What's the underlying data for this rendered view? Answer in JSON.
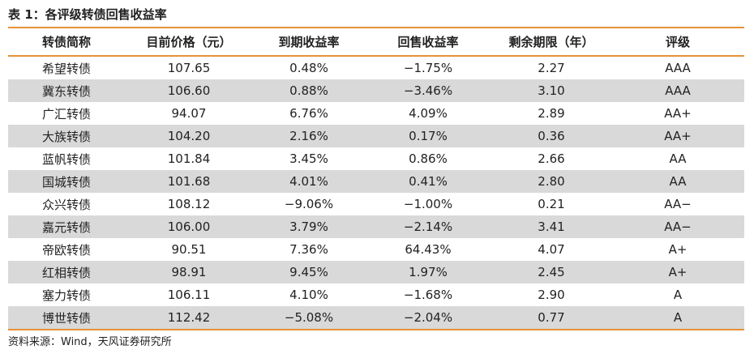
{
  "caption": "表 1：各评级转债回售收益率",
  "headers": [
    "转债简称",
    "目前价格（元）",
    "到期收益率",
    "回售收益率",
    "剩余期限（年）",
    "评级"
  ],
  "rows": [
    [
      "希望转债",
      "107.65",
      "0.48%",
      "−1.75%",
      "2.27",
      "AAA"
    ],
    [
      "冀东转债",
      "106.60",
      "0.88%",
      "−3.46%",
      "3.10",
      "AAA"
    ],
    [
      "广汇转债",
      "94.07",
      "6.76%",
      "4.09%",
      "2.89",
      "AA+"
    ],
    [
      "大族转债",
      "104.20",
      "2.16%",
      "0.17%",
      "0.36",
      "AA+"
    ],
    [
      "蓝帆转债",
      "101.84",
      "3.45%",
      "0.86%",
      "2.66",
      "AA"
    ],
    [
      "国城转债",
      "101.68",
      "4.01%",
      "0.41%",
      "2.80",
      "AA"
    ],
    [
      "众兴转债",
      "108.12",
      "−9.06%",
      "−1.00%",
      "0.21",
      "AA−"
    ],
    [
      "嘉元转债",
      "106.00",
      "3.79%",
      "−2.14%",
      "3.41",
      "AA−"
    ],
    [
      "帝欧转债",
      "90.51",
      "7.36%",
      "64.43%",
      "4.07",
      "A+"
    ],
    [
      "红相转债",
      "98.91",
      "9.45%",
      "1.97%",
      "2.45",
      "A+"
    ],
    [
      "塞力转债",
      "106.11",
      "4.10%",
      "−1.68%",
      "2.90",
      "A"
    ],
    [
      "博世转债",
      "112.42",
      "−5.08%",
      "−2.04%",
      "0.77",
      "A"
    ]
  ],
  "source": "资料来源：Wind，天风证券研究所",
  "colors": {
    "rule": "#e69138",
    "stripe": "#d9d9d9"
  }
}
